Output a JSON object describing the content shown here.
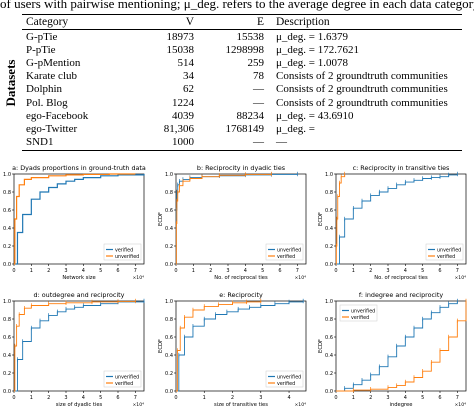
{
  "caption": "of users with pairwise mentioning; μ_deg. refers to the average degree in each data category.",
  "table": {
    "row_group_label": "Datasets",
    "headers": [
      "Category",
      "V",
      "E",
      "Description"
    ],
    "rows": [
      {
        "category": "G-pTie",
        "v": "18973",
        "e": "15538",
        "desc": "μ_deg. = 1.6379"
      },
      {
        "category": "P-pTie",
        "v": "15038",
        "e": "1298998",
        "desc": "μ_deg. = 172.7621"
      },
      {
        "category": "G-pMention",
        "v": "514",
        "e": "259",
        "desc": "μ_deg. = 1.0078"
      },
      {
        "category": "Karate club",
        "v": "34",
        "e": "78",
        "desc": "Consists of 2 groundtruth communities"
      },
      {
        "category": "Dolphin",
        "v": "62",
        "e": "—",
        "desc": "Consists of 2 groundtruth communities"
      },
      {
        "category": "Pol. Blog",
        "v": "1224",
        "e": "—",
        "desc": "Consists of 2 groundtruth communities"
      },
      {
        "category": "ego-Facebook",
        "v": "4039",
        "e": "88234",
        "desc": "μ_deg. = 43.6910"
      },
      {
        "category": "ego-Twitter",
        "v": "81,306",
        "e": "1768149",
        "desc": "μ_deg. = "
      },
      {
        "category": "SND1",
        "v": "1000",
        "e": "—",
        "desc": "—"
      }
    ]
  },
  "colors": {
    "verified": "#1f77b4",
    "unverified": "#ff7f0e"
  },
  "chart_data": [
    {
      "type": "line",
      "title": "a: Dyads proportions in ground-truth data",
      "xlabel": "Network size",
      "ylabel": "ECDF",
      "x_ticks": [
        "0",
        "1",
        "2",
        "3",
        "4",
        "5",
        "6",
        "7"
      ],
      "x_exponent": "×10⁴",
      "y_ticks": [
        "0.0",
        "0.2",
        "0.4",
        "0.6",
        "0.8",
        "1.0"
      ],
      "xlim": [
        0,
        7.5
      ],
      "ylim": [
        0,
        1
      ],
      "legend": {
        "placement": "lower-right",
        "entries": [
          "verified",
          "unverified"
        ]
      },
      "series": [
        {
          "name": "verified",
          "color": "#1f77b4",
          "style": "line",
          "x": [
            0,
            0.2,
            0.5,
            1.0,
            1.5,
            2.0,
            2.5,
            3.0,
            3.5,
            4.0,
            5.0,
            6.0,
            7.5
          ],
          "y": [
            0,
            0.35,
            0.55,
            0.72,
            0.8,
            0.85,
            0.89,
            0.92,
            0.94,
            0.96,
            0.98,
            0.99,
            1.0
          ]
        },
        {
          "name": "unverified",
          "color": "#ff7f0e",
          "style": "line",
          "x": [
            0,
            0.05,
            0.15,
            0.3,
            0.6,
            1.0,
            2.0,
            3.0,
            4.0,
            5.5,
            7.0
          ],
          "y": [
            0,
            0.5,
            0.75,
            0.88,
            0.94,
            0.96,
            0.98,
            0.99,
            0.995,
            1.0,
            1.0
          ]
        }
      ]
    },
    {
      "type": "line",
      "title": "b: Reciprocity in dyadic ties",
      "xlabel": "No. of reciprocal ties",
      "ylabel": "ECDF",
      "x_ticks": [
        "0",
        "1",
        "2",
        "3",
        "4",
        "5",
        "6",
        "7"
      ],
      "x_exponent": "×10⁴",
      "y_ticks": [
        "0.0",
        "0.2",
        "0.4",
        "0.6",
        "0.8",
        "1.0"
      ],
      "xlim": [
        0,
        7.5
      ],
      "ylim": [
        0,
        1
      ],
      "legend": {
        "placement": "lower-right",
        "entries": [
          "unverified",
          "verified"
        ]
      },
      "series": [
        {
          "name": "unverified",
          "color": "#1f77b4",
          "style": "ticks",
          "x": [
            0,
            0.02,
            0.05,
            0.1,
            0.2,
            0.4,
            0.8,
            1.5,
            2.5,
            4.0,
            5.5,
            7.0
          ],
          "y": [
            0,
            0.6,
            0.8,
            0.88,
            0.92,
            0.94,
            0.96,
            0.97,
            0.98,
            0.99,
            0.995,
            1.0
          ]
        },
        {
          "name": "verified",
          "color": "#ff7f0e",
          "style": "ticks",
          "x": [
            0,
            0.02,
            0.05,
            0.1,
            0.2,
            0.4,
            0.8,
            1.5,
            2.5,
            4.0,
            5.5
          ],
          "y": [
            0,
            0.45,
            0.7,
            0.8,
            0.87,
            0.92,
            0.95,
            0.97,
            0.985,
            0.995,
            1.0
          ]
        }
      ]
    },
    {
      "type": "line",
      "title": "c: Reciprocity in transitive ties",
      "xlabel": "No. of reciprocal ties",
      "ylabel": "ECDF",
      "x_ticks": [
        "0",
        "1",
        "2",
        "3",
        "4",
        "5",
        "6",
        "7"
      ],
      "x_exponent": "×10⁴",
      "y_ticks": [
        "0.0",
        "0.2",
        "0.4",
        "0.6",
        "0.8",
        "1.0"
      ],
      "xlim": [
        0,
        7.5
      ],
      "ylim": [
        0,
        1
      ],
      "legend": {
        "placement": "lower-right",
        "entries": [
          "unverified",
          "verified"
        ]
      },
      "series": [
        {
          "name": "unverified",
          "color": "#1f77b4",
          "style": "ticks",
          "x": [
            0,
            0.2,
            0.5,
            1.0,
            1.5,
            2.0,
            2.5,
            3.0,
            3.5,
            4.0,
            4.5,
            5.0,
            5.5,
            6.0,
            6.5,
            7.0
          ],
          "y": [
            0,
            0.3,
            0.5,
            0.62,
            0.7,
            0.76,
            0.8,
            0.84,
            0.88,
            0.91,
            0.93,
            0.95,
            0.96,
            0.97,
            0.99,
            1.0
          ]
        },
        {
          "name": "verified",
          "color": "#ff7f0e",
          "style": "ticks",
          "x": [
            0,
            0.02,
            0.05,
            0.1,
            0.2,
            0.3,
            0.5
          ],
          "y": [
            0,
            0.2,
            0.5,
            0.75,
            0.9,
            0.97,
            1.0
          ]
        }
      ]
    },
    {
      "type": "line",
      "title": "d: outdegree and reciprocity",
      "xlabel": "size of dyadic ties",
      "ylabel": "ECDF",
      "x_ticks": [
        "0",
        "1",
        "2",
        "3",
        "4",
        "5",
        "6",
        "7"
      ],
      "x_exponent": "×10⁴",
      "y_ticks": [
        "0.0",
        "0.2",
        "0.4",
        "0.6",
        "0.8",
        "1.0"
      ],
      "xlim": [
        0,
        7.5
      ],
      "ylim": [
        0,
        1
      ],
      "legend": {
        "placement": "lower-right",
        "entries": [
          "unverified",
          "verified"
        ]
      },
      "series": [
        {
          "name": "unverified",
          "color": "#1f77b4",
          "style": "ticks",
          "x": [
            0,
            0.2,
            0.5,
            1.0,
            1.5,
            2.0,
            2.5,
            3.0,
            3.5,
            4.0,
            5.0,
            6.0,
            7.5
          ],
          "y": [
            0,
            0.35,
            0.55,
            0.7,
            0.78,
            0.84,
            0.88,
            0.91,
            0.93,
            0.95,
            0.97,
            0.99,
            1.0
          ]
        },
        {
          "name": "verified",
          "color": "#ff7f0e",
          "style": "ticks",
          "x": [
            0,
            0.05,
            0.15,
            0.3,
            0.6,
            1.0,
            2.0,
            3.0,
            4.5,
            6.0,
            7.0
          ],
          "y": [
            0,
            0.5,
            0.72,
            0.85,
            0.92,
            0.95,
            0.97,
            0.98,
            0.99,
            0.995,
            1.0
          ]
        }
      ]
    },
    {
      "type": "line",
      "title": "e: Reciprocity",
      "xlabel": "size of transitive ties",
      "ylabel": "ECDF",
      "x_ticks": [
        "0",
        "1",
        "2",
        "3",
        "4"
      ],
      "x_exponent": "×10⁴",
      "y_ticks": [
        "0.0",
        "0.2",
        "0.4",
        "0.6",
        "0.8",
        "1.0"
      ],
      "xlim": [
        0,
        4.6
      ],
      "ylim": [
        0,
        1
      ],
      "legend": {
        "placement": "lower-right",
        "entries": [
          "unverified",
          "verified"
        ]
      },
      "series": [
        {
          "name": "unverified",
          "color": "#1f77b4",
          "style": "ticks",
          "x": [
            0,
            0.1,
            0.3,
            0.6,
            1.0,
            1.4,
            1.8,
            2.2,
            2.6,
            3.0,
            3.5,
            4.0,
            4.5
          ],
          "y": [
            0,
            0.4,
            0.6,
            0.72,
            0.8,
            0.85,
            0.88,
            0.91,
            0.93,
            0.95,
            0.97,
            0.99,
            1.0
          ]
        },
        {
          "name": "verified",
          "color": "#ff7f0e",
          "style": "ticks",
          "x": [
            0,
            0.05,
            0.15,
            0.3,
            0.6,
            1.0,
            1.5,
            2.0,
            2.5,
            3.0
          ],
          "y": [
            0,
            0.45,
            0.7,
            0.82,
            0.9,
            0.94,
            0.96,
            0.98,
            0.99,
            1.0
          ]
        }
      ]
    },
    {
      "type": "line",
      "title": "f: indegree and reciprocity",
      "xlabel": "indegree",
      "ylabel": "ECDF",
      "x_ticks": [
        "0",
        "1",
        "2",
        "3",
        "4",
        "5",
        "6",
        "7"
      ],
      "x_exponent": "×10⁴",
      "y_ticks": [
        "0.0",
        "0.2",
        "0.4",
        "0.6",
        "0.8",
        "1.0"
      ],
      "xlim": [
        0,
        7.5
      ],
      "ylim": [
        0,
        1
      ],
      "legend": {
        "placement": "upper-left",
        "entries": [
          "unverified",
          "verified"
        ]
      },
      "series": [
        {
          "name": "unverified",
          "color": "#1f77b4",
          "style": "ticks",
          "x": [
            0,
            0.5,
            1.0,
            1.5,
            2.0,
            2.5,
            3.0,
            3.5,
            4.0,
            4.5,
            5.0,
            5.5,
            6.0,
            6.5,
            7.0
          ],
          "y": [
            0,
            0.03,
            0.07,
            0.12,
            0.18,
            0.27,
            0.38,
            0.5,
            0.6,
            0.7,
            0.8,
            0.87,
            0.93,
            0.97,
            1.0
          ]
        },
        {
          "name": "verified",
          "color": "#ff7f0e",
          "style": "ticks",
          "x": [
            0,
            1.0,
            2.0,
            3.0,
            3.5,
            4.0,
            4.5,
            5.0,
            5.5,
            6.0,
            6.5,
            7.0,
            7.5
          ],
          "y": [
            0,
            0.01,
            0.02,
            0.04,
            0.06,
            0.1,
            0.15,
            0.22,
            0.32,
            0.45,
            0.6,
            0.78,
            1.0
          ]
        }
      ]
    }
  ]
}
